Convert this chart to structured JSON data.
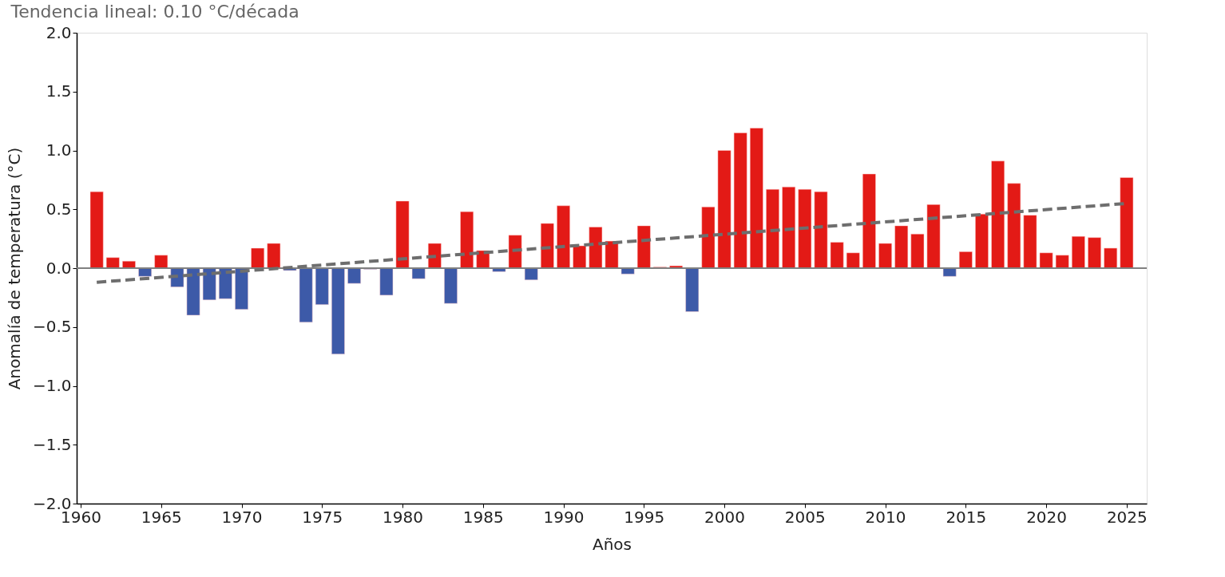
{
  "chart_data": {
    "type": "bar",
    "title": "Tendencia lineal: 0.10 °C/década",
    "xlabel": "Años",
    "ylabel": "Anomalía de temperatura (°C)",
    "x": [
      1961,
      1962,
      1963,
      1964,
      1965,
      1966,
      1967,
      1968,
      1969,
      1970,
      1971,
      1972,
      1973,
      1974,
      1975,
      1976,
      1977,
      1978,
      1979,
      1980,
      1981,
      1982,
      1983,
      1984,
      1985,
      1986,
      1987,
      1988,
      1989,
      1990,
      1991,
      1992,
      1993,
      1994,
      1995,
      1996,
      1997,
      1998,
      1999,
      2000,
      2001,
      2002,
      2003,
      2004,
      2005,
      2006,
      2007,
      2008,
      2009,
      2010,
      2011,
      2012,
      2013,
      2014,
      2015,
      2016,
      2017,
      2018,
      2019,
      2020,
      2021,
      2022,
      2023,
      2024,
      2025
    ],
    "series": [
      {
        "values": [
          0.65,
          0.09,
          0.06,
          -0.07,
          0.11,
          -0.16,
          -0.4,
          -0.27,
          -0.26,
          -0.35,
          0.17,
          0.21,
          -0.02,
          -0.46,
          -0.31,
          -0.73,
          -0.13,
          -0.01,
          -0.23,
          0.57,
          -0.09,
          0.21,
          -0.3,
          0.48,
          0.15,
          -0.03,
          0.28,
          -0.1,
          0.38,
          0.53,
          0.19,
          0.35,
          0.23,
          -0.05,
          0.36,
          0.01,
          0.02,
          -0.37,
          0.52,
          1.0,
          1.15,
          1.19,
          0.67,
          0.69,
          0.67,
          0.65,
          0.22,
          0.13,
          0.8,
          0.21,
          0.36,
          0.29,
          0.54,
          -0.07,
          0.14,
          0.46,
          0.91,
          0.72,
          0.45,
          0.13,
          0.11,
          0.27,
          0.26,
          0.17,
          0.77
        ],
        "colors": [
          "#e31a16",
          "#e31a16",
          "#e31a16",
          "#3d5aa8",
          "#e31a16",
          "#3d5aa8",
          "#3d5aa8",
          "#3d5aa8",
          "#3d5aa8",
          "#3d5aa8",
          "#e31a16",
          "#e31a16",
          "#3d5aa8",
          "#3d5aa8",
          "#3d5aa8",
          "#3d5aa8",
          "#3d5aa8",
          "#3d5aa8",
          "#3d5aa8",
          "#e31a16",
          "#3d5aa8",
          "#e31a16",
          "#3d5aa8",
          "#e31a16",
          "#e31a16",
          "#3d5aa8",
          "#e31a16",
          "#3d5aa8",
          "#e31a16",
          "#e31a16",
          "#e31a16",
          "#e31a16",
          "#e31a16",
          "#3d5aa8",
          "#e31a16",
          "#e31a16",
          "#e31a16",
          "#3d5aa8",
          "#e31a16",
          "#e31a16",
          "#e31a16",
          "#e31a16",
          "#e31a16",
          "#e31a16",
          "#e31a16",
          "#e31a16",
          "#e31a16",
          "#e31a16",
          "#e31a16",
          "#e31a16",
          "#e31a16",
          "#e31a16",
          "#e31a16",
          "#3d5aa8",
          "#e31a16",
          "#e31a16",
          "#e31a16",
          "#e31a16",
          "#e31a16",
          "#e31a16",
          "#e31a16",
          "#e31a16",
          "#e31a16",
          "#e31a16",
          "#e31a16"
        ]
      },
      {
        "type": "line",
        "color": "#6e6e6e",
        "line_style": "dashed",
        "x": [
          1961,
          2025
        ],
        "values": [
          -0.12,
          0.55
        ]
      }
    ],
    "xlim": [
      1960,
      2026
    ],
    "xticks": [
      1960,
      1965,
      1970,
      1975,
      1980,
      1985,
      1990,
      1995,
      2000,
      2005,
      2010,
      2015,
      2020,
      2025
    ],
    "ylim": [
      -2.0,
      2.0
    ],
    "yticks": [
      {
        "value": -2.0,
        "label": "−2.0"
      },
      {
        "value": -1.5,
        "label": "−1.5"
      },
      {
        "value": -1.0,
        "label": "−1.0"
      },
      {
        "value": -0.5,
        "label": "−0.5"
      },
      {
        "value": 0.0,
        "label": "0.0"
      },
      {
        "value": 0.5,
        "label": "0.5"
      },
      {
        "value": 1.0,
        "label": "1.0"
      },
      {
        "value": 1.5,
        "label": "1.5"
      },
      {
        "value": 2.0,
        "label": "2.0"
      }
    ],
    "ref_lines": [
      {
        "axis": "y",
        "value": 0,
        "color": "#808080"
      }
    ],
    "grid": false
  }
}
